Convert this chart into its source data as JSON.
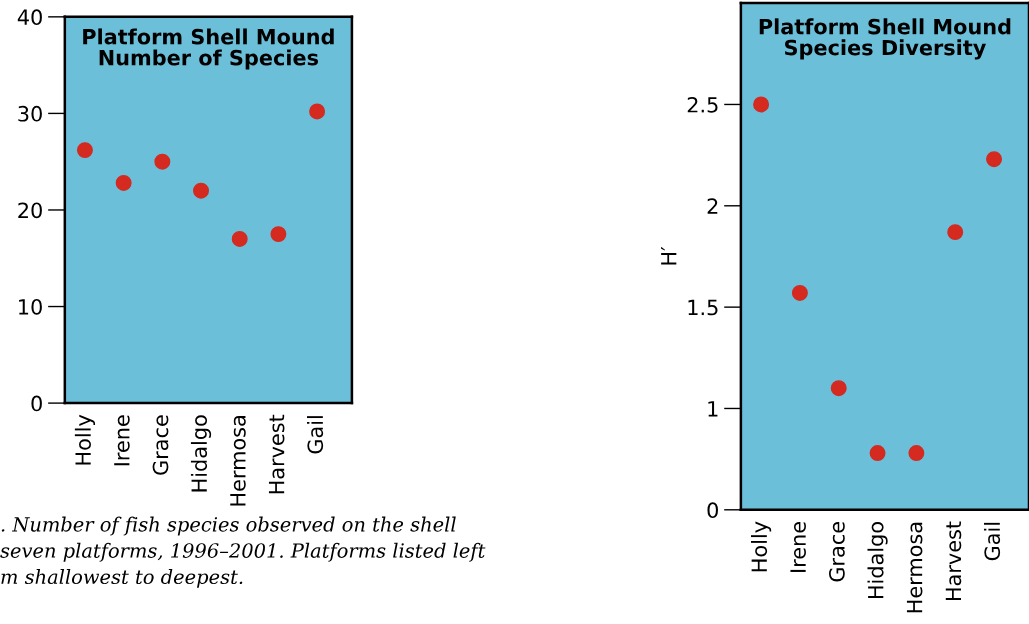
{
  "chart_data": [
    {
      "type": "scatter",
      "title": "Platform Shell Mound\nNumber of Species",
      "categories": [
        "Holly",
        "Irene",
        "Grace",
        "Hidalgo",
        "Hermosa",
        "Harvest",
        "Gail"
      ],
      "series": [
        {
          "color": "#d42a20",
          "values": [
            26.2,
            22.8,
            25,
            22,
            17,
            17.5,
            30.2
          ]
        }
      ],
      "ylim": [
        0,
        40
      ],
      "yticks": [
        0,
        10,
        20,
        30,
        40
      ],
      "marker": "circle",
      "grid": false,
      "legend": false,
      "annotations": [
        ". Number of fish species observed on the shell\nseven platforms, 1996–2001. Platforms listed left\nm shallowest to deepest."
      ]
    },
    {
      "type": "scatter",
      "title": "Platform Shell Mound\nSpecies Diversity",
      "ylabel": "H′",
      "categories": [
        "Holly",
        "Irene",
        "Grace",
        "Hidalgo",
        "Hermosa",
        "Harvest",
        "Gail"
      ],
      "series": [
        {
          "color": "#d42a20",
          "values": [
            2.5,
            1.57,
            1.1,
            0.78,
            0.78,
            1.87,
            2.23
          ]
        }
      ],
      "ylim": [
        0.5,
        3.0
      ],
      "yticks": [
        {
          "value": 0.5,
          "label": "0"
        },
        1,
        1.5,
        2,
        2.5
      ],
      "marker": "circle",
      "grid": false,
      "legend": false
    }
  ]
}
